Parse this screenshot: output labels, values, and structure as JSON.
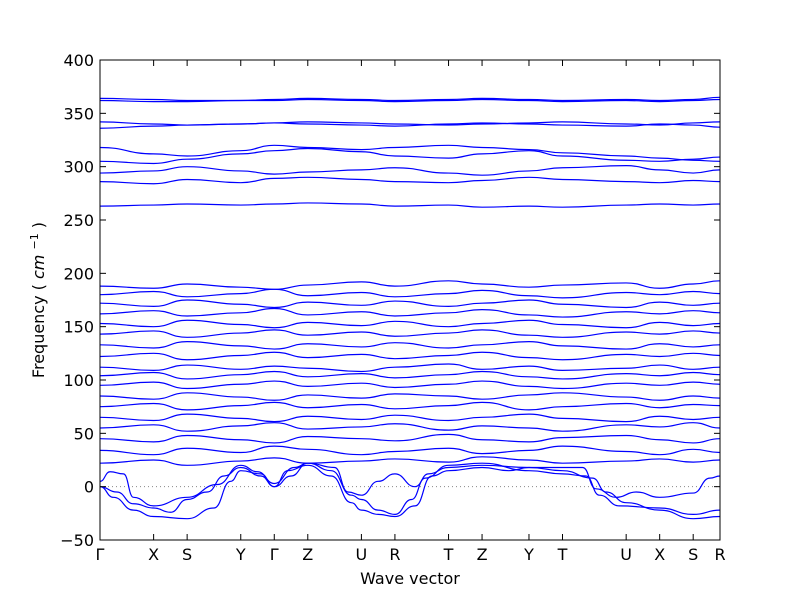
{
  "chart_data": {
    "type": "line",
    "title": "",
    "xlabel": "Wave vector",
    "ylabel": "Frequency",
    "ylabel_unit_base": "cm",
    "ylabel_unit_exp": "−1",
    "ylim": [
      -50,
      400
    ],
    "yticks": [
      -50,
      0,
      50,
      100,
      150,
      200,
      250,
      300,
      350,
      400
    ],
    "xlim": [
      0,
      18.5
    ],
    "xticks": [
      {
        "label": "Γ",
        "x": 0
      },
      {
        "label": "X",
        "x": 1.6
      },
      {
        "label": "S",
        "x": 2.6
      },
      {
        "label": "Y",
        "x": 4.2
      },
      {
        "label": "Γ",
        "x": 5.2
      },
      {
        "label": "Z",
        "x": 6.2
      },
      {
        "label": "U",
        "x": 7.8
      },
      {
        "label": "R",
        "x": 8.8
      },
      {
        "label": "T",
        "x": 10.4
      },
      {
        "label": "Z",
        "x": 11.4
      },
      {
        "label": "Y",
        "x": 12.8
      },
      {
        "label": "T",
        "x": 13.8
      },
      {
        "label": "U",
        "x": 15.7
      },
      {
        "label": "X",
        "x": 16.7
      },
      {
        "label": "S",
        "x": 17.7
      },
      {
        "label": "R",
        "x": 18.5
      }
    ],
    "zero_line": {
      "y": 0,
      "style": "dotted",
      "color": "#888888"
    },
    "line_color": "#0000ff",
    "grid": false,
    "legend": "none",
    "acoustic_branches": [
      {
        "name": "",
        "points": [
          [
            0,
            0
          ],
          [
            0.4,
            -10
          ],
          [
            1.0,
            -22
          ],
          [
            1.6,
            -28
          ],
          [
            2.6,
            -30
          ],
          [
            3.4,
            -20
          ],
          [
            3.9,
            5
          ],
          [
            4.2,
            15
          ],
          [
            4.8,
            12
          ],
          [
            5.2,
            0
          ],
          [
            5.6,
            15
          ],
          [
            6.2,
            20
          ],
          [
            6.9,
            10
          ],
          [
            7.5,
            -15
          ],
          [
            7.8,
            -22
          ],
          [
            8.3,
            -26
          ],
          [
            8.8,
            -28
          ],
          [
            9.4,
            -18
          ],
          [
            9.9,
            10
          ],
          [
            10.4,
            15
          ],
          [
            11.4,
            18
          ],
          [
            12.2,
            15
          ],
          [
            12.8,
            18
          ],
          [
            13.8,
            15
          ],
          [
            14.7,
            8
          ],
          [
            15.1,
            -5
          ],
          [
            15.7,
            -15
          ],
          [
            16.7,
            -22
          ],
          [
            17.7,
            -30
          ],
          [
            18.5,
            -28
          ]
        ]
      },
      {
        "name": "",
        "points": [
          [
            0,
            0
          ],
          [
            0.5,
            -5
          ],
          [
            1.0,
            -16
          ],
          [
            1.6,
            -20
          ],
          [
            2.1,
            -24
          ],
          [
            2.6,
            -12
          ],
          [
            3.2,
            -5
          ],
          [
            3.7,
            10
          ],
          [
            4.2,
            18
          ],
          [
            4.8,
            10
          ],
          [
            5.2,
            0
          ],
          [
            5.7,
            10
          ],
          [
            6.2,
            22
          ],
          [
            6.9,
            15
          ],
          [
            7.5,
            -8
          ],
          [
            7.8,
            -12
          ],
          [
            8.3,
            -22
          ],
          [
            8.8,
            -26
          ],
          [
            9.3,
            -12
          ],
          [
            9.7,
            8
          ],
          [
            10.4,
            20
          ],
          [
            11.4,
            22
          ],
          [
            12.8,
            15
          ],
          [
            13.8,
            12
          ],
          [
            14.5,
            10
          ],
          [
            14.9,
            -8
          ],
          [
            15.5,
            -18
          ],
          [
            16.7,
            -20
          ],
          [
            17.7,
            -26
          ],
          [
            18.5,
            -22
          ]
        ]
      },
      {
        "name": "",
        "points": [
          [
            0,
            5
          ],
          [
            0.3,
            14
          ],
          [
            0.7,
            12
          ],
          [
            1.0,
            -10
          ],
          [
            1.6,
            -18
          ],
          [
            2.6,
            -10
          ],
          [
            3.5,
            2
          ],
          [
            4.2,
            20
          ],
          [
            4.7,
            14
          ],
          [
            5.2,
            3
          ],
          [
            5.8,
            18
          ],
          [
            6.2,
            22
          ],
          [
            7.0,
            18
          ],
          [
            7.4,
            -5
          ],
          [
            7.8,
            -8
          ],
          [
            8.3,
            5
          ],
          [
            8.8,
            12
          ],
          [
            9.4,
            0
          ],
          [
            9.8,
            12
          ],
          [
            10.4,
            18
          ],
          [
            11.4,
            20
          ],
          [
            12.8,
            18
          ],
          [
            13.8,
            18
          ],
          [
            14.4,
            18
          ],
          [
            14.8,
            -2
          ],
          [
            15.4,
            -10
          ],
          [
            16.0,
            -5
          ],
          [
            16.7,
            -10
          ],
          [
            17.7,
            -6
          ],
          [
            18.2,
            8
          ],
          [
            18.5,
            10
          ]
        ]
      }
    ],
    "optical_bands_approx": [
      {
        "name": "",
        "values": [
          22,
          25,
          20,
          24,
          27,
          22,
          24,
          26,
          23,
          28,
          25,
          22,
          24,
          26,
          23,
          25
        ]
      },
      {
        "name": "",
        "values": [
          34,
          30,
          36,
          32,
          38,
          35,
          30,
          33,
          36,
          31,
          34,
          38,
          33,
          30,
          35,
          32
        ]
      },
      {
        "name": "",
        "values": [
          45,
          42,
          48,
          44,
          41,
          47,
          45,
          43,
          49,
          44,
          42,
          46,
          48,
          44,
          41,
          45
        ]
      },
      {
        "name": "",
        "values": [
          55,
          58,
          52,
          57,
          60,
          54,
          56,
          59,
          53,
          57,
          55,
          52,
          58,
          56,
          60,
          55
        ]
      },
      {
        "name": "",
        "values": [
          65,
          62,
          68,
          64,
          61,
          66,
          63,
          67,
          62,
          65,
          68,
          64,
          61,
          66,
          63,
          65
        ]
      },
      {
        "name": "",
        "values": [
          75,
          78,
          72,
          76,
          79,
          74,
          77,
          73,
          76,
          79,
          72,
          75,
          78,
          74,
          77,
          76
        ]
      },
      {
        "name": "",
        "values": [
          85,
          82,
          88,
          84,
          81,
          86,
          83,
          87,
          85,
          82,
          86,
          88,
          84,
          81,
          85,
          83
        ]
      },
      {
        "name": "",
        "values": [
          95,
          98,
          92,
          96,
          99,
          94,
          97,
          93,
          96,
          99,
          94,
          92,
          97,
          95,
          98,
          96
        ]
      },
      {
        "name": "",
        "values": [
          104,
          107,
          101,
          105,
          108,
          103,
          106,
          102,
          105,
          108,
          103,
          101,
          106,
          104,
          107,
          105
        ]
      },
      {
        "name": "",
        "values": [
          112,
          109,
          114,
          110,
          113,
          111,
          108,
          112,
          115,
          110,
          113,
          109,
          111,
          114,
          110,
          112
        ]
      },
      {
        "name": "",
        "values": [
          122,
          125,
          119,
          123,
          126,
          121,
          124,
          120,
          123,
          126,
          121,
          119,
          124,
          122,
          125,
          123
        ]
      },
      {
        "name": "",
        "values": [
          133,
          130,
          136,
          132,
          129,
          134,
          131,
          135,
          130,
          133,
          136,
          132,
          129,
          134,
          131,
          133
        ]
      },
      {
        "name": "",
        "values": [
          143,
          146,
          140,
          144,
          147,
          142,
          145,
          141,
          144,
          147,
          142,
          140,
          145,
          143,
          146,
          144
        ]
      },
      {
        "name": "",
        "values": [
          153,
          150,
          156,
          152,
          149,
          154,
          151,
          155,
          150,
          153,
          156,
          152,
          149,
          154,
          151,
          153
        ]
      },
      {
        "name": "",
        "values": [
          162,
          165,
          160,
          163,
          167,
          161,
          164,
          160,
          163,
          166,
          161,
          159,
          164,
          162,
          165,
          163
        ]
      },
      {
        "name": "",
        "values": [
          172,
          169,
          175,
          171,
          168,
          173,
          170,
          174,
          169,
          172,
          175,
          171,
          168,
          173,
          170,
          172
        ]
      },
      {
        "name": "",
        "values": [
          180,
          183,
          178,
          181,
          185,
          179,
          182,
          178,
          181,
          184,
          179,
          177,
          182,
          180,
          183,
          181
        ]
      },
      {
        "name": "",
        "values": [
          188,
          186,
          190,
          187,
          185,
          189,
          192,
          188,
          193,
          190,
          187,
          189,
          191,
          186,
          190,
          193
        ]
      },
      {
        "name": "",
        "values": [
          263,
          264,
          265,
          264,
          265,
          266,
          265,
          263,
          264,
          262,
          263,
          262,
          264,
          265,
          264,
          265
        ]
      },
      {
        "name": "",
        "values": [
          286,
          284,
          288,
          285,
          289,
          290,
          288,
          286,
          285,
          287,
          290,
          288,
          286,
          285,
          287,
          286
        ]
      },
      {
        "name": "",
        "values": [
          294,
          296,
          300,
          296,
          293,
          295,
          297,
          299,
          294,
          292,
          296,
          299,
          301,
          297,
          294,
          297
        ]
      },
      {
        "name": "",
        "values": [
          305,
          303,
          307,
          312,
          315,
          317,
          314,
          310,
          308,
          312,
          315,
          310,
          306,
          305,
          307,
          309
        ]
      },
      {
        "name": "",
        "values": [
          318,
          312,
          310,
          315,
          320,
          318,
          316,
          318,
          320,
          318,
          316,
          313,
          310,
          308,
          306,
          305
        ]
      },
      {
        "name": "",
        "values": [
          336,
          338,
          339,
          340,
          341,
          340,
          339,
          338,
          340,
          341,
          340,
          339,
          338,
          340,
          339,
          337
        ]
      },
      {
        "name": "",
        "values": [
          342,
          340,
          339,
          340,
          341,
          342,
          341,
          340,
          339,
          340,
          341,
          342,
          340,
          339,
          341,
          342
        ]
      },
      {
        "name": "",
        "values": [
          362,
          361,
          361,
          362,
          362,
          363,
          362,
          361,
          362,
          363,
          362,
          361,
          362,
          361,
          362,
          363
        ]
      },
      {
        "name": "",
        "values": [
          364,
          363,
          362,
          362,
          363,
          364,
          363,
          362,
          363,
          364,
          363,
          362,
          363,
          362,
          363,
          365
        ]
      }
    ]
  }
}
